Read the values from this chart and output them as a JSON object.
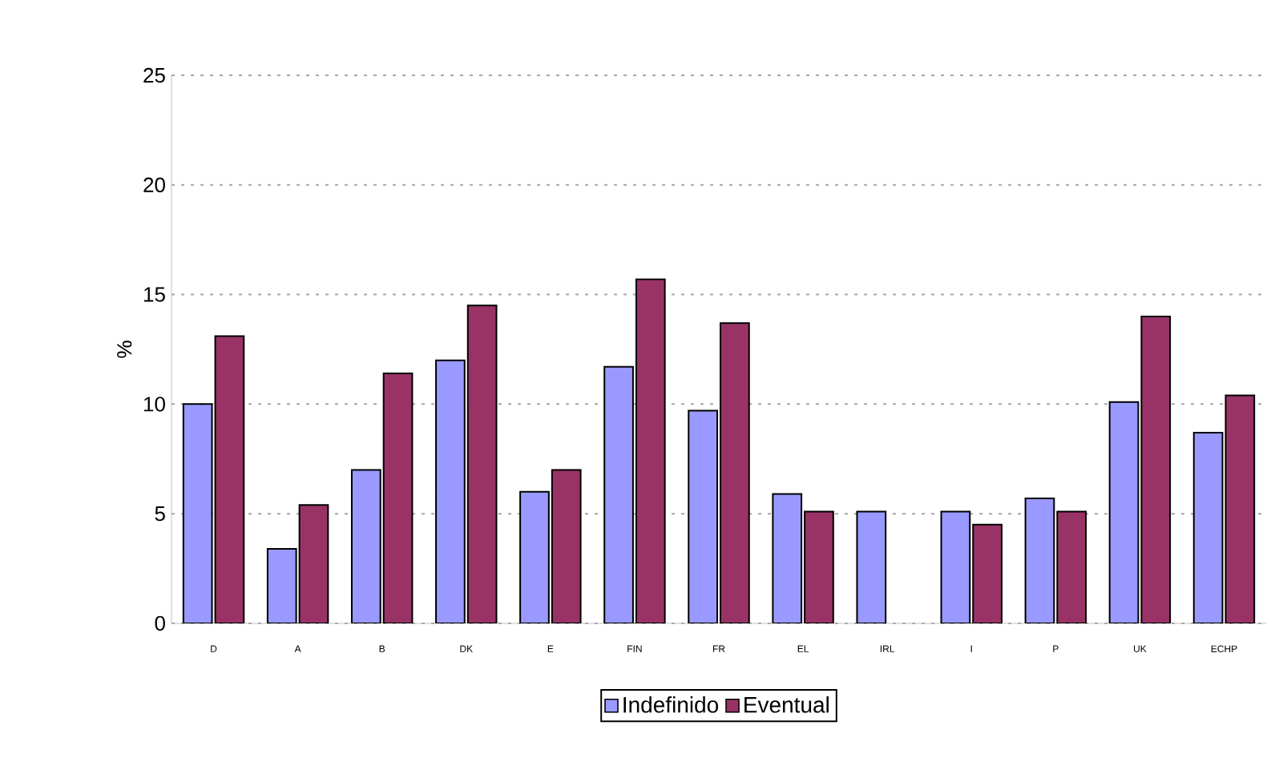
{
  "chart_data": {
    "type": "bar",
    "ylabel": "%",
    "categories": [
      "D",
      "A",
      "B",
      "DK",
      "E",
      "FIN",
      "FR",
      "EL",
      "IRL",
      "I",
      "P",
      "UK",
      "ECHP"
    ],
    "series": [
      {
        "name": "Indefinido",
        "color": "#9999ff",
        "values": [
          10.0,
          3.4,
          7.0,
          12.0,
          6.0,
          11.7,
          9.7,
          5.9,
          5.1,
          5.1,
          5.7,
          10.1,
          8.7
        ]
      },
      {
        "name": "Eventual",
        "color": "#993366",
        "values": [
          13.1,
          5.4,
          11.4,
          14.5,
          7.0,
          15.7,
          13.7,
          5.1,
          null,
          4.5,
          5.1,
          14.0,
          10.4
        ]
      }
    ],
    "ylim": [
      0,
      25
    ],
    "yticks": [
      0,
      5,
      10,
      15,
      20,
      25
    ],
    "grid": "y",
    "legend": "bottom"
  }
}
